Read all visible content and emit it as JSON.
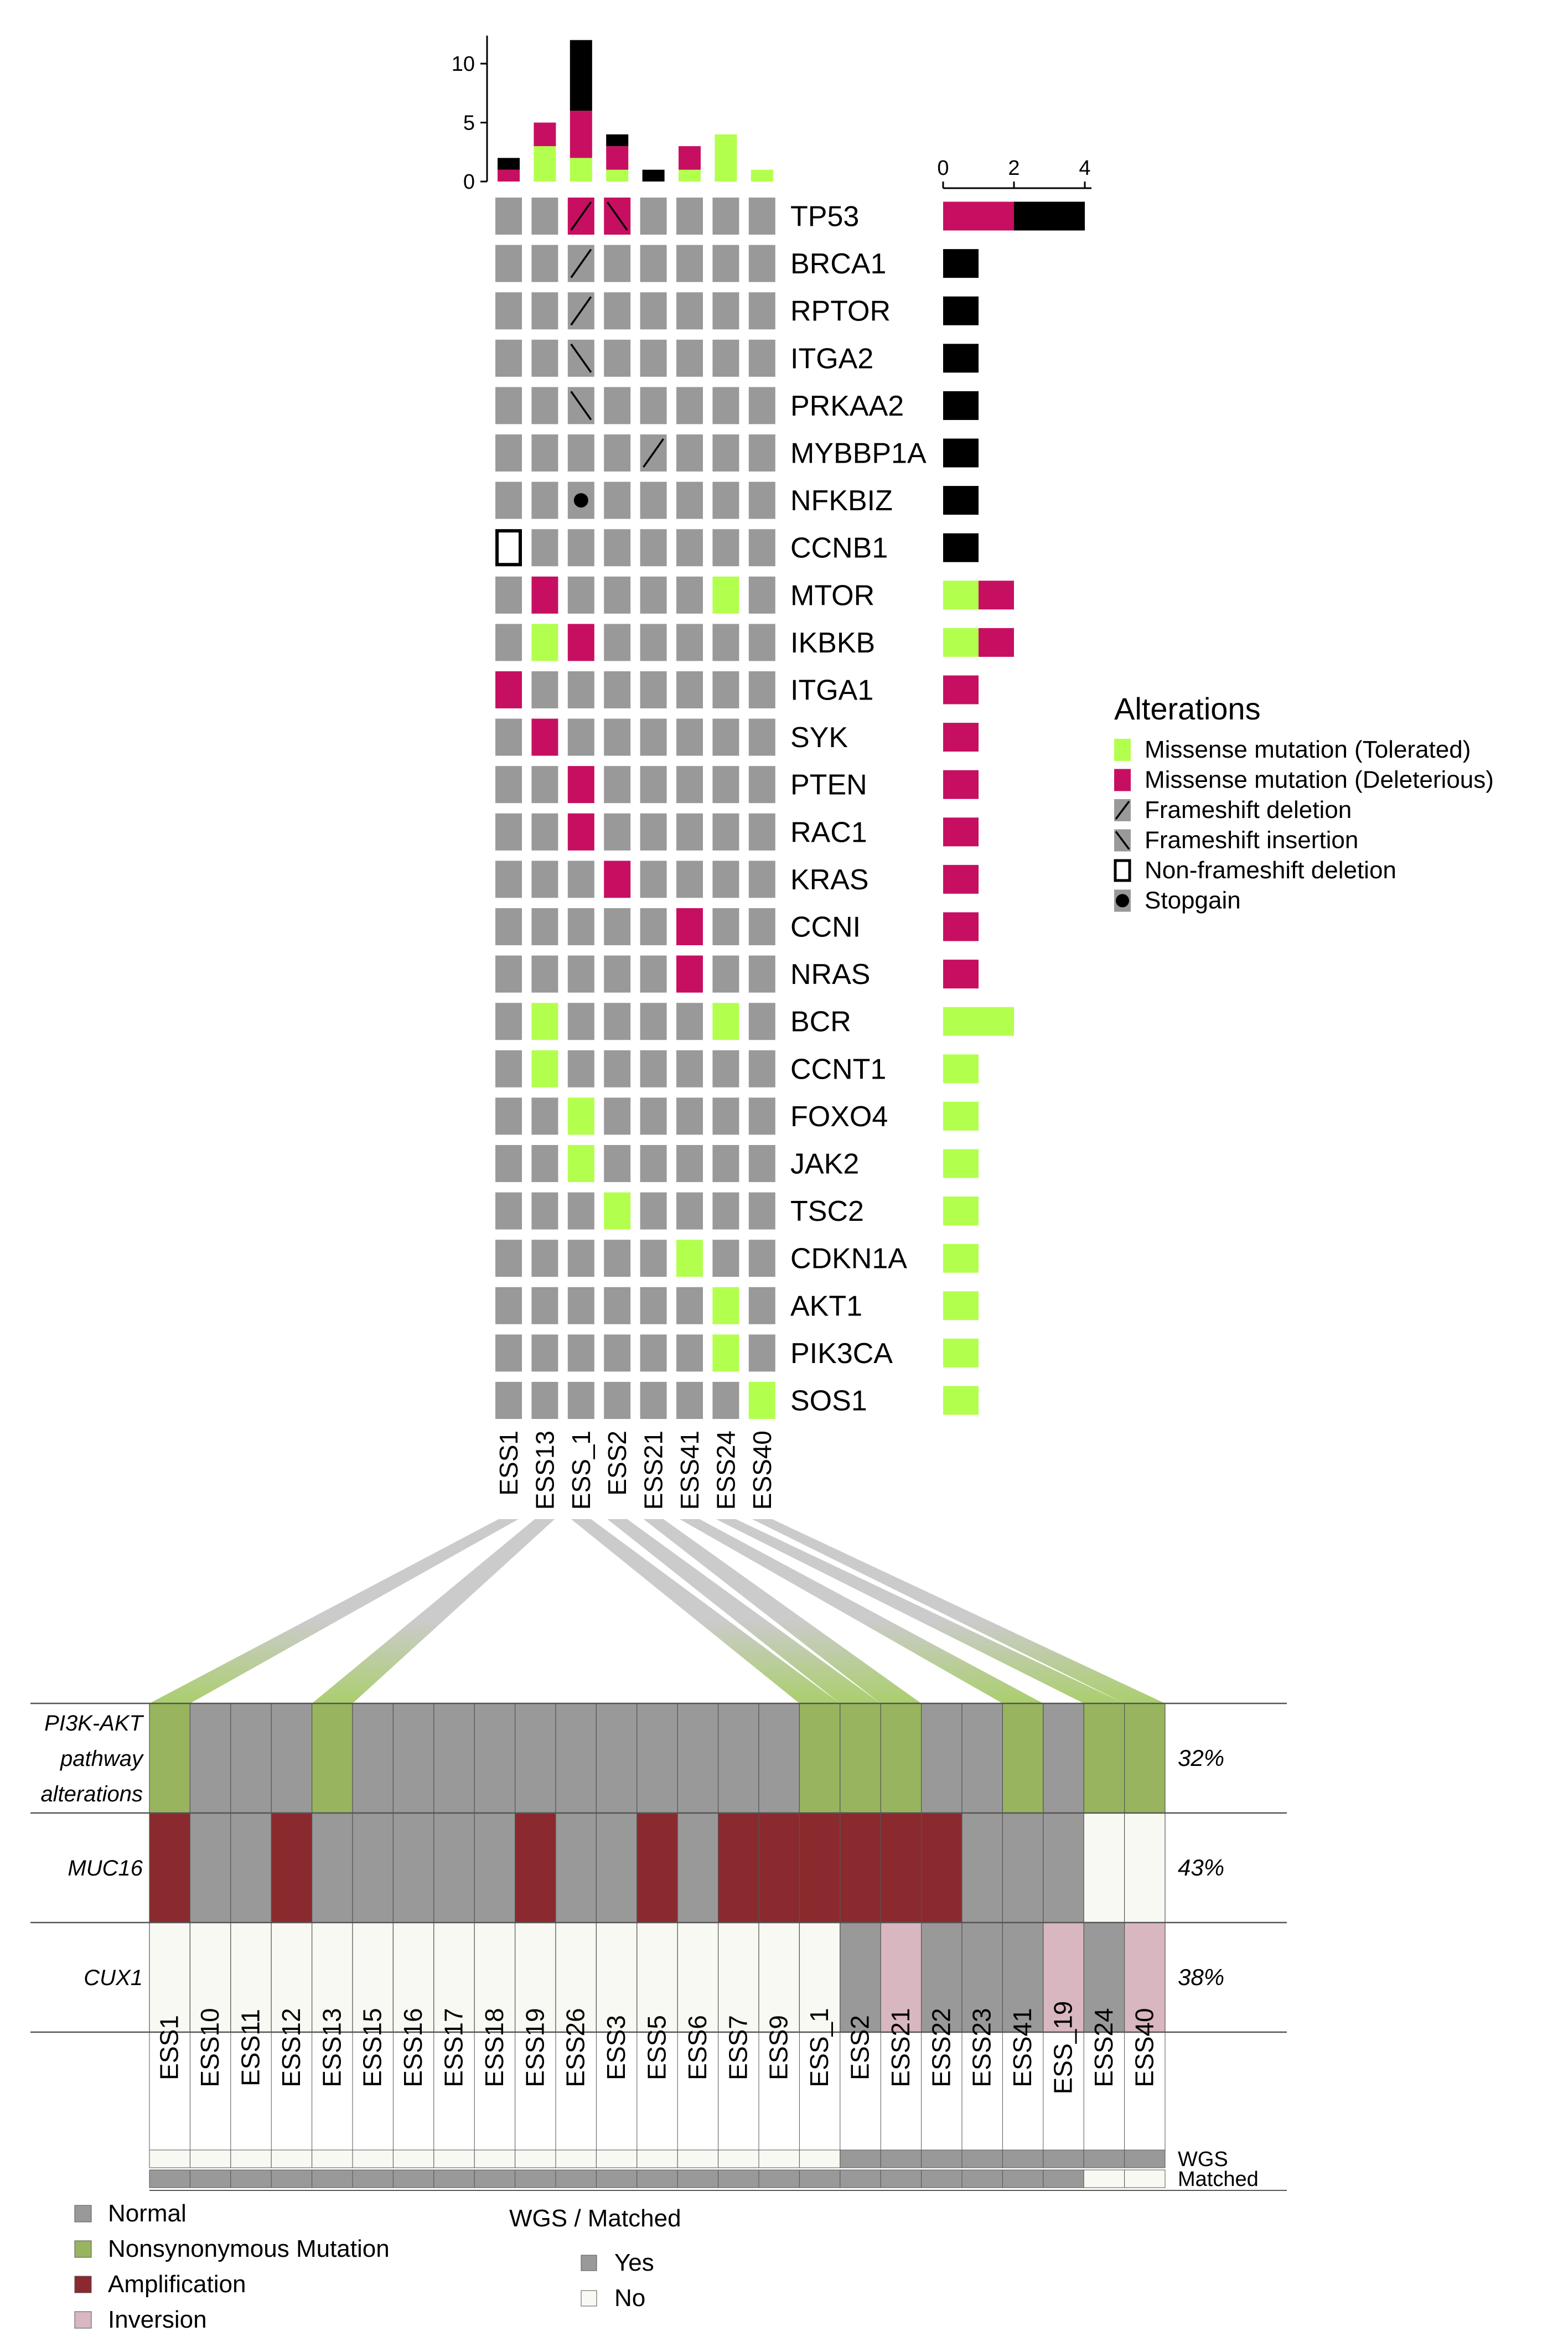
{
  "colors": {
    "top_normal": "#999999",
    "top_missense_tolerated": "#b3ff4d",
    "top_missense_deleterious": "#c70f62",
    "top_black": "#000000",
    "bottom_normal": "#999999",
    "bottom_nonsyn": "#98b45e",
    "bottom_amp": "#8b2a2e",
    "bottom_inversion": "#d9b7c0",
    "bottom_none": "#f8f9f2",
    "link_gray": "#c8c8c8",
    "link_green": "#a6cc66"
  },
  "chart_data": [
    {
      "type": "oncoprint",
      "samples": [
        "ESS1",
        "ESS13",
        "ESS_1",
        "ESS2",
        "ESS21",
        "ESS41",
        "ESS24",
        "ESS40"
      ],
      "genes": [
        "TP53",
        "BRCA1",
        "RPTOR",
        "ITGA2",
        "PRKAA2",
        "MYBBP1A",
        "NFKBIZ",
        "CCNB1",
        "MTOR",
        "IKBKB",
        "ITGA1",
        "SYK",
        "PTEN",
        "RAC1",
        "KRAS",
        "CCNI",
        "NRAS",
        "BCR",
        "CCNT1",
        "FOXO4",
        "JAK2",
        "TSC2",
        "CDKN1A",
        "AKT1",
        "PIK3CA",
        "SOS1"
      ],
      "alterations": [
        {
          "gene": "TP53",
          "sample": "ESS_1",
          "type": "Frameshift deletion"
        },
        {
          "gene": "TP53",
          "sample": "ESS_1",
          "type": "Missense mutation (Deleterious)"
        },
        {
          "gene": "TP53",
          "sample": "ESS2",
          "type": "Frameshift insertion"
        },
        {
          "gene": "TP53",
          "sample": "ESS2",
          "type": "Missense mutation (Deleterious)"
        },
        {
          "gene": "BRCA1",
          "sample": "ESS_1",
          "type": "Frameshift deletion"
        },
        {
          "gene": "RPTOR",
          "sample": "ESS_1",
          "type": "Frameshift deletion"
        },
        {
          "gene": "ITGA2",
          "sample": "ESS_1",
          "type": "Frameshift insertion"
        },
        {
          "gene": "PRKAA2",
          "sample": "ESS_1",
          "type": "Frameshift insertion"
        },
        {
          "gene": "MYBBP1A",
          "sample": "ESS21",
          "type": "Frameshift deletion"
        },
        {
          "gene": "NFKBIZ",
          "sample": "ESS_1",
          "type": "Stopgain"
        },
        {
          "gene": "CCNB1",
          "sample": "ESS1",
          "type": "Non-frameshift deletion"
        },
        {
          "gene": "MTOR",
          "sample": "ESS13",
          "type": "Missense mutation (Deleterious)"
        },
        {
          "gene": "MTOR",
          "sample": "ESS24",
          "type": "Missense mutation (Tolerated)"
        },
        {
          "gene": "IKBKB",
          "sample": "ESS13",
          "type": "Missense mutation (Tolerated)"
        },
        {
          "gene": "IKBKB",
          "sample": "ESS_1",
          "type": "Missense mutation (Deleterious)"
        },
        {
          "gene": "ITGA1",
          "sample": "ESS1",
          "type": "Missense mutation (Deleterious)"
        },
        {
          "gene": "SYK",
          "sample": "ESS13",
          "type": "Missense mutation (Deleterious)"
        },
        {
          "gene": "PTEN",
          "sample": "ESS_1",
          "type": "Missense mutation (Deleterious)"
        },
        {
          "gene": "RAC1",
          "sample": "ESS_1",
          "type": "Missense mutation (Deleterious)"
        },
        {
          "gene": "KRAS",
          "sample": "ESS2",
          "type": "Missense mutation (Deleterious)"
        },
        {
          "gene": "CCNI",
          "sample": "ESS41",
          "type": "Missense mutation (Deleterious)"
        },
        {
          "gene": "NRAS",
          "sample": "ESS41",
          "type": "Missense mutation (Deleterious)"
        },
        {
          "gene": "BCR",
          "sample": "ESS13",
          "type": "Missense mutation (Tolerated)"
        },
        {
          "gene": "BCR",
          "sample": "ESS24",
          "type": "Missense mutation (Tolerated)"
        },
        {
          "gene": "CCNT1",
          "sample": "ESS13",
          "type": "Missense mutation (Tolerated)"
        },
        {
          "gene": "FOXO4",
          "sample": "ESS_1",
          "type": "Missense mutation (Tolerated)"
        },
        {
          "gene": "JAK2",
          "sample": "ESS_1",
          "type": "Missense mutation (Tolerated)"
        },
        {
          "gene": "TSC2",
          "sample": "ESS2",
          "type": "Missense mutation (Tolerated)"
        },
        {
          "gene": "CDKN1A",
          "sample": "ESS41",
          "type": "Missense mutation (Tolerated)"
        },
        {
          "gene": "AKT1",
          "sample": "ESS24",
          "type": "Missense mutation (Tolerated)"
        },
        {
          "gene": "PIK3CA",
          "sample": "ESS24",
          "type": "Missense mutation (Tolerated)"
        },
        {
          "gene": "SOS1",
          "sample": "ESS40",
          "type": "Missense mutation (Tolerated)"
        }
      ],
      "top_bars": {
        "yticks": [
          0,
          5,
          10
        ],
        "ylim": [
          0,
          12
        ],
        "segments_order": [
          "Missense mutation (Tolerated)",
          "Missense mutation (Deleterious)",
          "Other"
        ],
        "values": [
          {
            "sample": "ESS1",
            "tolerated": 0,
            "deleterious": 1,
            "other": 1
          },
          {
            "sample": "ESS13",
            "tolerated": 3,
            "deleterious": 2,
            "other": 0
          },
          {
            "sample": "ESS_1",
            "tolerated": 2,
            "deleterious": 4,
            "other": 6
          },
          {
            "sample": "ESS2",
            "tolerated": 1,
            "deleterious": 2,
            "other": 1
          },
          {
            "sample": "ESS21",
            "tolerated": 0,
            "deleterious": 0,
            "other": 1
          },
          {
            "sample": "ESS41",
            "tolerated": 1,
            "deleterious": 2,
            "other": 0
          },
          {
            "sample": "ESS24",
            "tolerated": 4,
            "deleterious": 0,
            "other": 0
          },
          {
            "sample": "ESS40",
            "tolerated": 1,
            "deleterious": 0,
            "other": 0
          }
        ]
      },
      "right_bars": {
        "xticks": [
          0,
          2,
          4
        ],
        "xlim": [
          0,
          4
        ],
        "values": [
          {
            "gene": "TP53",
            "tolerated": 0,
            "deleterious": 2,
            "other": 2
          },
          {
            "gene": "BRCA1",
            "tolerated": 0,
            "deleterious": 0,
            "other": 1
          },
          {
            "gene": "RPTOR",
            "tolerated": 0,
            "deleterious": 0,
            "other": 1
          },
          {
            "gene": "ITGA2",
            "tolerated": 0,
            "deleterious": 0,
            "other": 1
          },
          {
            "gene": "PRKAA2",
            "tolerated": 0,
            "deleterious": 0,
            "other": 1
          },
          {
            "gene": "MYBBP1A",
            "tolerated": 0,
            "deleterious": 0,
            "other": 1
          },
          {
            "gene": "NFKBIZ",
            "tolerated": 0,
            "deleterious": 0,
            "other": 1
          },
          {
            "gene": "CCNB1",
            "tolerated": 0,
            "deleterious": 0,
            "other": 1
          },
          {
            "gene": "MTOR",
            "tolerated": 1,
            "deleterious": 1,
            "other": 0
          },
          {
            "gene": "IKBKB",
            "tolerated": 1,
            "deleterious": 1,
            "other": 0
          },
          {
            "gene": "ITGA1",
            "tolerated": 0,
            "deleterious": 1,
            "other": 0
          },
          {
            "gene": "SYK",
            "tolerated": 0,
            "deleterious": 1,
            "other": 0
          },
          {
            "gene": "PTEN",
            "tolerated": 0,
            "deleterious": 1,
            "other": 0
          },
          {
            "gene": "RAC1",
            "tolerated": 0,
            "deleterious": 1,
            "other": 0
          },
          {
            "gene": "KRAS",
            "tolerated": 0,
            "deleterious": 1,
            "other": 0
          },
          {
            "gene": "CCNI",
            "tolerated": 0,
            "deleterious": 1,
            "other": 0
          },
          {
            "gene": "NRAS",
            "tolerated": 0,
            "deleterious": 1,
            "other": 0
          },
          {
            "gene": "BCR",
            "tolerated": 2,
            "deleterious": 0,
            "other": 0
          },
          {
            "gene": "CCNT1",
            "tolerated": 1,
            "deleterious": 0,
            "other": 0
          },
          {
            "gene": "FOXO4",
            "tolerated": 1,
            "deleterious": 0,
            "other": 0
          },
          {
            "gene": "JAK2",
            "tolerated": 1,
            "deleterious": 0,
            "other": 0
          },
          {
            "gene": "TSC2",
            "tolerated": 1,
            "deleterious": 0,
            "other": 0
          },
          {
            "gene": "CDKN1A",
            "tolerated": 1,
            "deleterious": 0,
            "other": 0
          },
          {
            "gene": "AKT1",
            "tolerated": 1,
            "deleterious": 0,
            "other": 0
          },
          {
            "gene": "PIK3CA",
            "tolerated": 1,
            "deleterious": 0,
            "other": 0
          },
          {
            "gene": "SOS1",
            "tolerated": 1,
            "deleterious": 0,
            "other": 0
          }
        ]
      },
      "legend": {
        "title": "Alterations",
        "items": [
          {
            "label": "Missense mutation (Tolerated)",
            "glyph": "tolerated"
          },
          {
            "label": "Missense mutation (Deleterious)",
            "glyph": "deleterious"
          },
          {
            "label": "Frameshift deletion",
            "glyph": "fs_del"
          },
          {
            "label": "Frameshift insertion",
            "glyph": "fs_ins"
          },
          {
            "label": "Non-frameshift deletion",
            "glyph": "nonfs_del"
          },
          {
            "label": "Stopgain",
            "glyph": "stopgain"
          }
        ],
        "placement": "right"
      }
    },
    {
      "type": "heatmap",
      "samples": [
        "ESS1",
        "ESS10",
        "ESS11",
        "ESS12",
        "ESS13",
        "ESS15",
        "ESS16",
        "ESS17",
        "ESS18",
        "ESS19",
        "ESS26",
        "ESS3",
        "ESS5",
        "ESS6",
        "ESS7",
        "ESS9",
        "ESS_1",
        "ESS2",
        "ESS21",
        "ESS22",
        "ESS23",
        "ESS41",
        "ESS_19",
        "ESS24",
        "ESS40"
      ],
      "rows": [
        {
          "label": "PI3K-AKT\npathway\nalterations",
          "percent": "32%",
          "values": [
            "N",
            "-",
            "-",
            "-",
            "N",
            "-",
            "-",
            "-",
            "-",
            "-",
            "-",
            "-",
            "-",
            "-",
            "-",
            "-",
            "N",
            "N",
            "N",
            "-",
            "-",
            "N",
            "-",
            "N",
            "N"
          ]
        },
        {
          "label": "MUC16",
          "percent": "43%",
          "values": [
            "A",
            "-",
            "-",
            "A",
            "-",
            "-",
            "-",
            "-",
            "-",
            "A",
            "-",
            "-",
            "A",
            "-",
            "A",
            "A",
            "A",
            "A",
            "A",
            "A",
            "-",
            "-",
            "-",
            "0",
            "0"
          ]
        },
        {
          "label": "CUX1",
          "percent": "38%",
          "values": [
            "0",
            "0",
            "0",
            "0",
            "0",
            "0",
            "0",
            "0",
            "0",
            "0",
            "0",
            "0",
            "0",
            "0",
            "0",
            "0",
            "0",
            "-",
            "I",
            "-",
            "-",
            "-",
            "I",
            "-",
            "I"
          ]
        }
      ],
      "value_codes": {
        "-": "Normal",
        "N": "Nonsynonymous Mutation",
        "A": "Amplification",
        "I": "Inversion",
        "0": "none"
      },
      "annotation_tracks": [
        {
          "label": "WGS",
          "values": [
            "No",
            "No",
            "No",
            "No",
            "No",
            "No",
            "No",
            "No",
            "No",
            "No",
            "No",
            "No",
            "No",
            "No",
            "No",
            "No",
            "No",
            "Yes",
            "Yes",
            "Yes",
            "Yes",
            "Yes",
            "Yes",
            "Yes",
            "Yes"
          ]
        },
        {
          "label": "Matched",
          "values": [
            "Yes",
            "Yes",
            "Yes",
            "Yes",
            "Yes",
            "Yes",
            "Yes",
            "Yes",
            "Yes",
            "Yes",
            "Yes",
            "Yes",
            "Yes",
            "Yes",
            "Yes",
            "Yes",
            "Yes",
            "Yes",
            "Yes",
            "Yes",
            "Yes",
            "Yes",
            "Yes",
            "No",
            "No"
          ]
        }
      ],
      "legend": {
        "items": [
          {
            "label": "Normal",
            "code": "-"
          },
          {
            "label": "Nonsynonymous Mutation",
            "code": "N"
          },
          {
            "label": "Amplification",
            "code": "A"
          },
          {
            "label": "Inversion",
            "code": "I"
          }
        ],
        "wgs_title": "WGS / Matched",
        "wgs_items": [
          {
            "label": "Yes"
          },
          {
            "label": "No"
          }
        ]
      },
      "links": [
        {
          "from": "ESS1",
          "to": "ESS1"
        },
        {
          "from": "ESS13",
          "to": "ESS13"
        },
        {
          "from": "ESS_1",
          "to": "ESS_1"
        },
        {
          "from": "ESS2",
          "to": "ESS2"
        },
        {
          "from": "ESS21",
          "to": "ESS21"
        },
        {
          "from": "ESS41",
          "to": "ESS41"
        },
        {
          "from": "ESS24",
          "to": "ESS24"
        },
        {
          "from": "ESS40",
          "to": "ESS40"
        }
      ]
    }
  ]
}
